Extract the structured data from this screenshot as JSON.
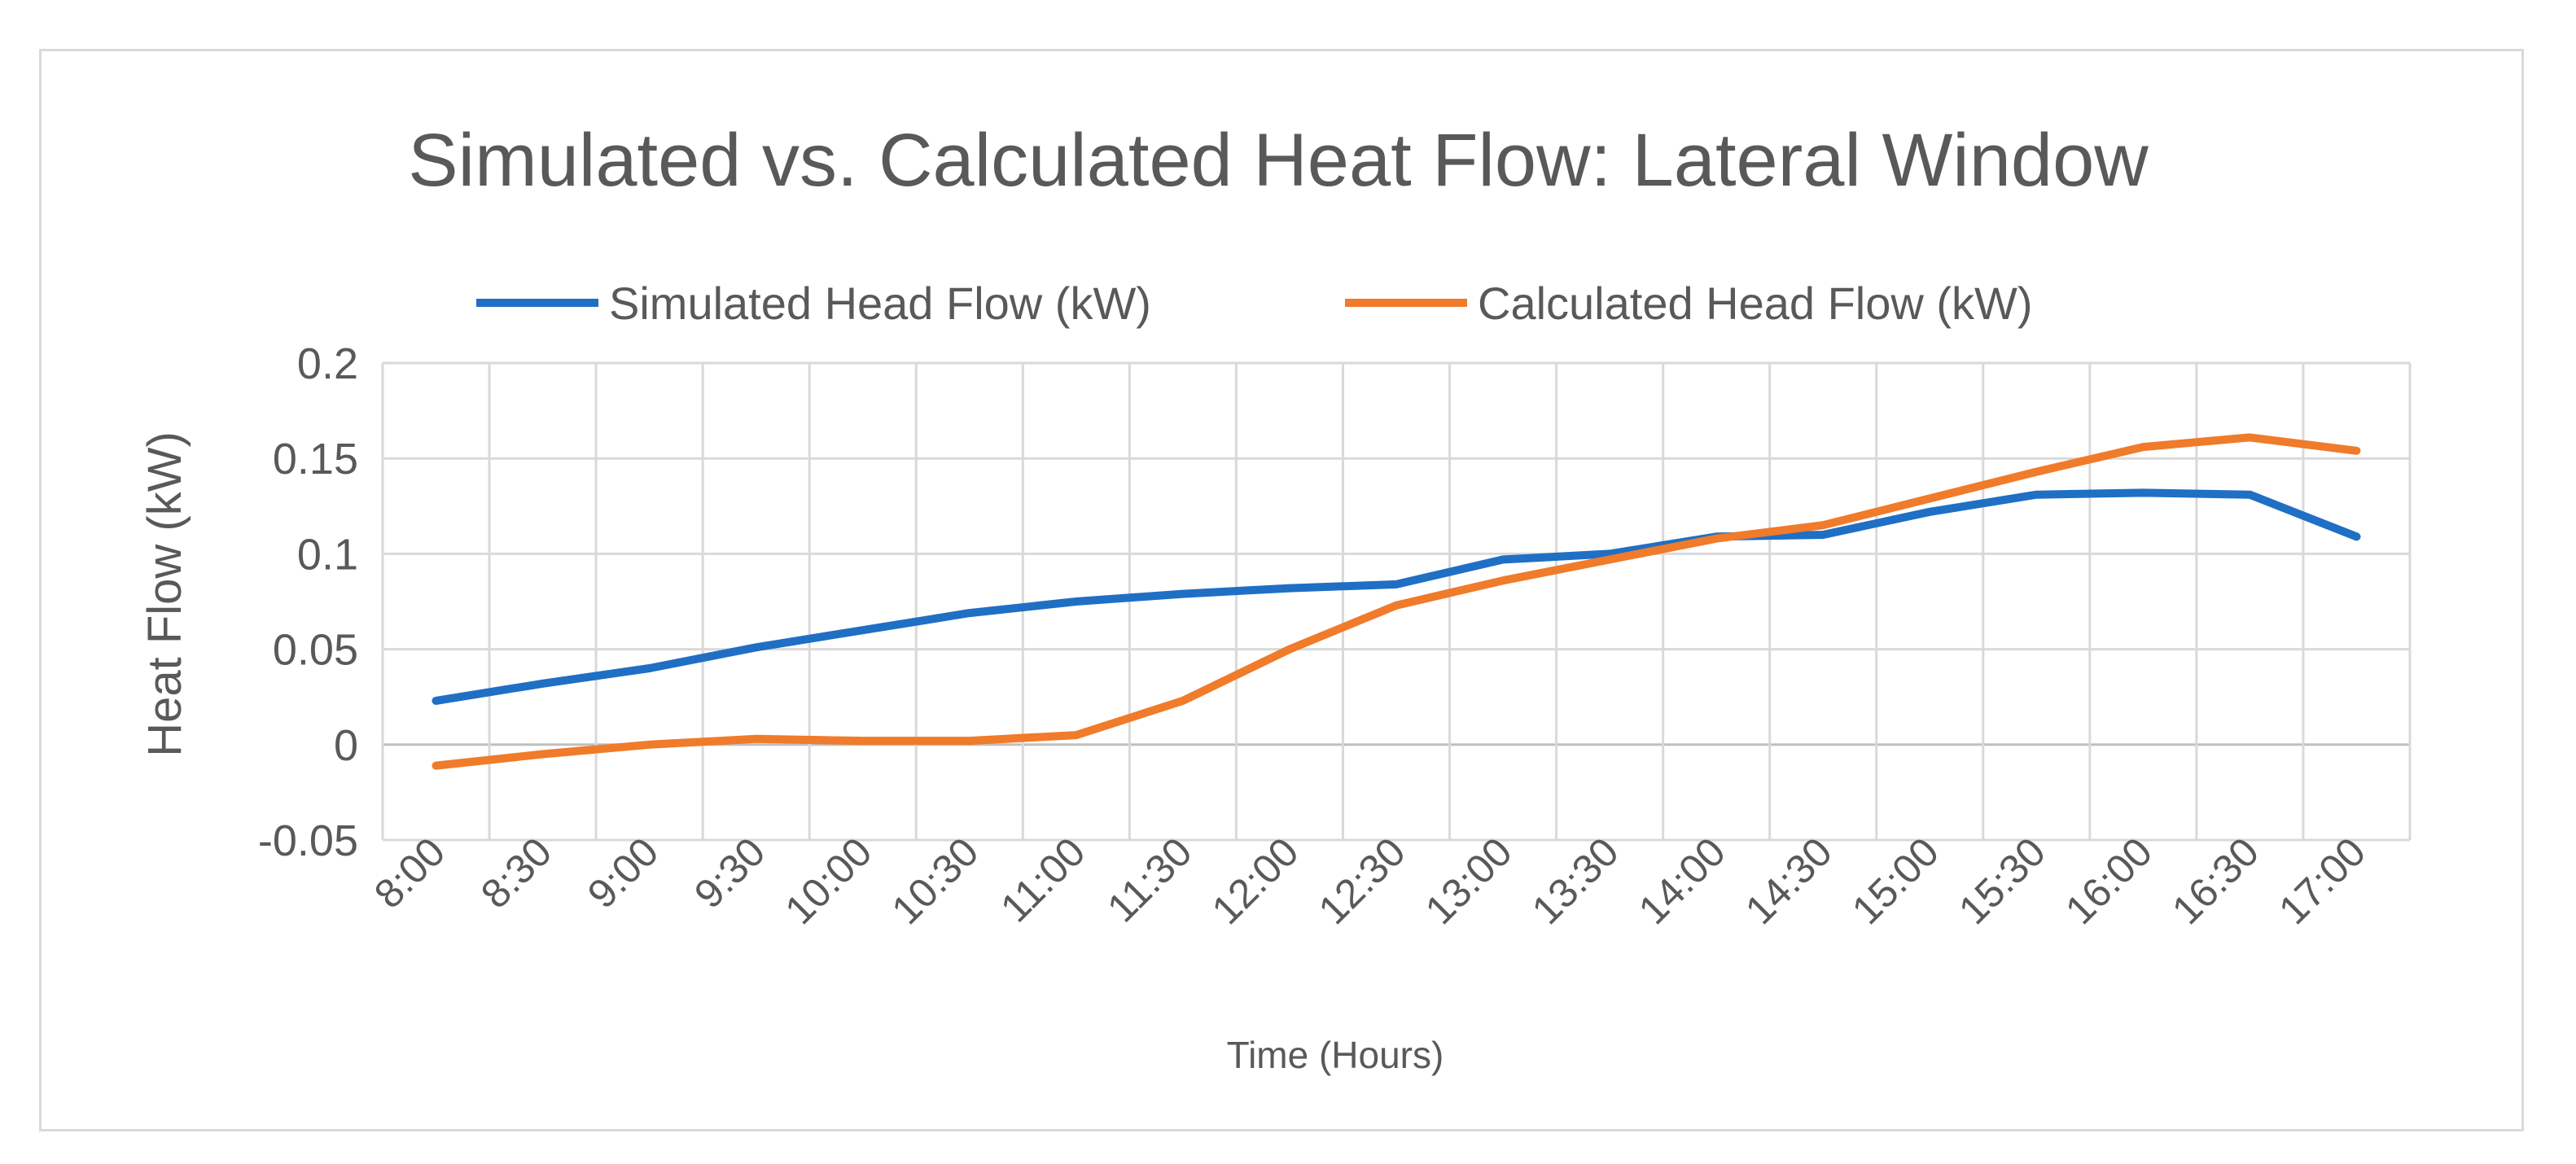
{
  "chart_data": {
    "type": "line",
    "title": "Simulated vs. Calculated Heat Flow: Lateral Window",
    "xlabel": "Time (Hours)",
    "ylabel": "Heat Flow (kW)",
    "ylim": [
      -0.05,
      0.2
    ],
    "yticks": [
      0.2,
      0.15,
      0.1,
      0.05,
      0,
      -0.05
    ],
    "ytick_labels": [
      "0.2",
      "0.15",
      "0.1",
      "0.05",
      "0",
      "-0.05"
    ],
    "grid": true,
    "legend_position": "top",
    "categories": [
      "8:00",
      "8:30",
      "9:00",
      "9:30",
      "10:00",
      "10:30",
      "11:00",
      "11:30",
      "12:00",
      "12:30",
      "13:00",
      "13:30",
      "14:00",
      "14:30",
      "15:00",
      "15:30",
      "16:00",
      "16:30",
      "17:00"
    ],
    "series": [
      {
        "name": "Simulated Head Flow (kW)",
        "color": "#1f6fc5",
        "values": [
          0.023,
          0.032,
          0.04,
          0.051,
          0.06,
          0.069,
          0.075,
          0.079,
          0.082,
          0.084,
          0.097,
          0.1,
          0.109,
          0.11,
          0.122,
          0.131,
          0.132,
          0.131,
          0.109
        ]
      },
      {
        "name": "Calculated Head Flow (kW)",
        "color": "#f07b2a",
        "values": [
          -0.011,
          -0.005,
          0.0,
          0.003,
          0.002,
          0.002,
          0.005,
          0.023,
          0.05,
          0.073,
          0.086,
          0.097,
          0.108,
          0.115,
          0.129,
          0.143,
          0.156,
          0.161,
          0.154
        ]
      }
    ]
  }
}
